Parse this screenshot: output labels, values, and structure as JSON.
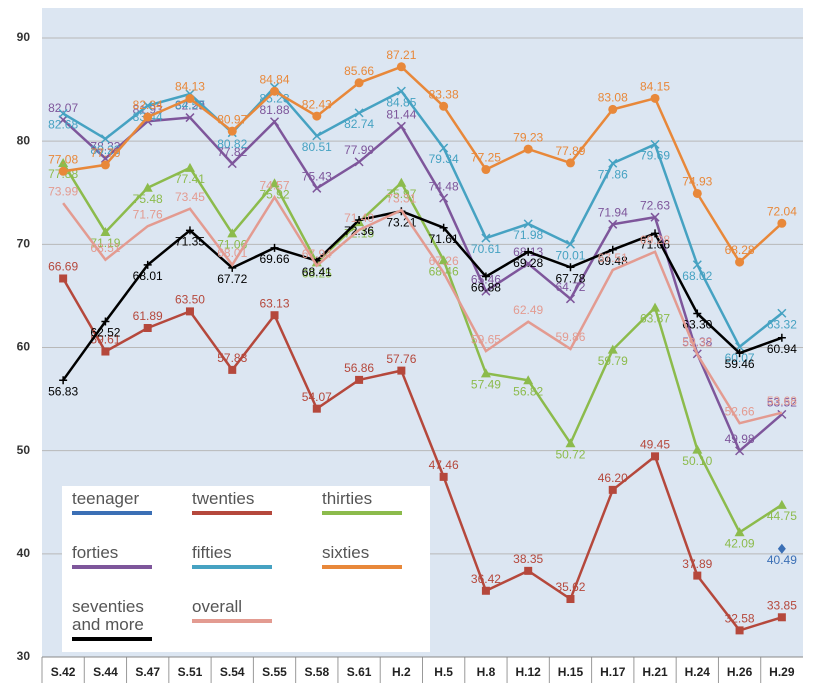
{
  "chart_data": {
    "type": "line",
    "categories": [
      "S.42",
      "S.44",
      "S.47",
      "S.51",
      "S.54",
      "S.55",
      "S.58",
      "S.61",
      "H.2",
      "H.5",
      "H.8",
      "H.12",
      "H.15",
      "H.17",
      "H.21",
      "H.24",
      "H.26",
      "H.29"
    ],
    "ylim": [
      30,
      90
    ],
    "yticks": [
      30,
      40,
      50,
      60,
      70,
      80,
      90
    ],
    "grid": true,
    "series": [
      {
        "name": "teenager",
        "color": "#3b6fb5",
        "marker": "diamond",
        "values": [
          null,
          null,
          null,
          null,
          null,
          null,
          null,
          null,
          null,
          null,
          null,
          null,
          null,
          null,
          null,
          null,
          null,
          40.49
        ]
      },
      {
        "name": "twenties",
        "color": "#b5483c",
        "marker": "square",
        "values": [
          66.69,
          59.61,
          61.89,
          63.5,
          57.83,
          63.13,
          54.07,
          56.86,
          57.76,
          47.46,
          36.42,
          38.35,
          35.62,
          46.2,
          49.45,
          37.89,
          32.58,
          33.85
        ],
        "value_labels": [
          "66.69",
          "59.61",
          "61.89",
          "63.50",
          "57.83",
          "63.13",
          "54.07",
          "56.86",
          "57.76",
          "47.46",
          "36.42",
          "38.35",
          "35.62",
          "46.20",
          "49.45",
          "37.89",
          "32.58",
          "33.85"
        ]
      },
      {
        "name": "thirties",
        "color": "#8cbb4c",
        "marker": "triangle",
        "values": [
          77.88,
          71.19,
          75.48,
          77.41,
          71.06,
          75.92,
          68.25,
          72.15,
          75.97,
          68.46,
          57.49,
          56.82,
          50.72,
          59.79,
          63.87,
          50.1,
          42.09,
          44.75
        ],
        "value_labels": [
          "77.88",
          "71.19",
          "75.48",
          "77.41",
          "71.06",
          "75.92",
          "68.25",
          "72.15",
          "75.97",
          "68.46",
          "57.49",
          "56.82",
          "50.72",
          "59.79",
          "63.87",
          "50.10",
          "42.09",
          "44.75"
        ]
      },
      {
        "name": "forties",
        "color": "#7e569b",
        "marker": "x",
        "values": [
          82.07,
          78.33,
          81.93,
          82.29,
          77.82,
          81.88,
          75.43,
          77.99,
          81.44,
          74.48,
          65.46,
          68.13,
          64.72,
          71.94,
          72.63,
          59.38,
          49.98,
          53.52
        ]
      },
      {
        "name": "fifties",
        "color": "#46a2c2",
        "marker": "x",
        "values": [
          82.68,
          80.23,
          83.44,
          84.57,
          80.82,
          85.23,
          80.51,
          82.74,
          84.85,
          79.34,
          70.61,
          71.98,
          70.01,
          77.86,
          79.69,
          68.02,
          60.07,
          63.32
        ]
      },
      {
        "name": "sixties",
        "color": "#e8883a",
        "marker": "circle",
        "values": [
          77.08,
          77.7,
          82.34,
          84.13,
          80.97,
          84.84,
          82.43,
          85.66,
          87.21,
          83.38,
          77.25,
          79.23,
          77.89,
          83.08,
          84.15,
          74.93,
          68.28,
          72.04
        ],
        "value_labels": [
          "77.08",
          "77.70",
          "82.34",
          "84.13",
          "80.97",
          "84.84",
          "82.43",
          "85.66",
          "87.21",
          "83.38",
          "77.25",
          "79.23",
          "77.89",
          "83.08",
          "84.15",
          "74.93",
          "68.28",
          "72.04"
        ]
      },
      {
        "name": "seventies and more",
        "color": "#000000",
        "marker": "plus",
        "values": [
          56.83,
          62.52,
          68.01,
          71.35,
          67.72,
          69.66,
          68.41,
          72.36,
          73.21,
          71.61,
          66.88,
          69.28,
          67.78,
          69.48,
          71.06,
          63.3,
          59.46,
          60.94
        ],
        "value_labels": [
          "56.83",
          "62.52",
          "68.01",
          "71.35",
          "67.72",
          "69.66",
          "68.41",
          "72.36",
          "73.21",
          "71.61",
          "66.88",
          "69.28",
          "67.78",
          "69.48",
          "71.06",
          "63.30",
          "59.46",
          "60.94"
        ]
      },
      {
        "name": "overall",
        "color": "#e39b91",
        "marker": "none",
        "values": [
          73.99,
          68.51,
          71.76,
          73.45,
          68.01,
          74.57,
          67.94,
          71.4,
          73.31,
          67.26,
          59.65,
          62.49,
          59.86,
          67.51,
          69.28,
          59.32,
          52.66,
          53.68
        ],
        "value_labels": [
          "73.99",
          "68.51",
          "71.76",
          "73.45",
          "68.01",
          "74.57",
          "67.94",
          "71.40",
          "73.31",
          "67.26",
          "59.65",
          "62.49",
          "59.86",
          "67.51",
          "69.28",
          "59.32",
          "52.66",
          "53.68"
        ]
      }
    ]
  }
}
